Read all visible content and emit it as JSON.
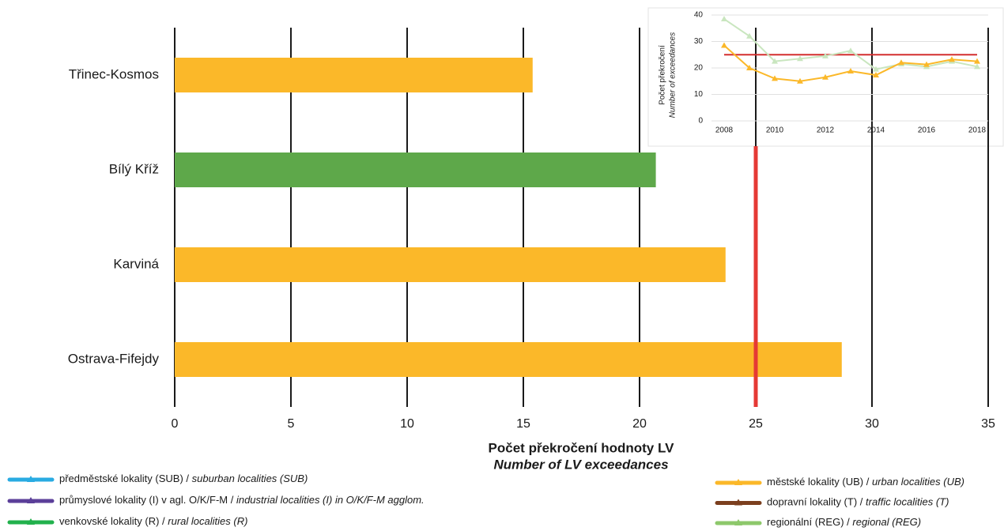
{
  "chart_data": [
    {
      "type": "barh",
      "categories": [
        "Třinec-Kosmos",
        "Bílý Kříž",
        "Karviná",
        "Ostrava-Fifejdy"
      ],
      "values": [
        15.4,
        20.7,
        23.7,
        28.7
      ],
      "colors": [
        "#fbb829",
        "#5ea84a",
        "#fbb829",
        "#fbb829"
      ],
      "xlim": [
        0,
        35
      ],
      "xticks": [
        0,
        5,
        10,
        15,
        20,
        25,
        30,
        35
      ],
      "xlabel": "Počet překročení hodnoty LV",
      "xlabel_en": "Number of LV exceedances",
      "limit": 25,
      "limit_color": "#e53935",
      "grid": true,
      "legend": [
        {
          "name": "předměstské lokality (SUB) /",
          "name_en": "suburban localities (SUB)",
          "color": "#29abe2"
        },
        {
          "name": "průmyslové lokality (I) v agl. O/K/F-M /",
          "name_en": "industrial localities (I) in O/K/F-M agglom.",
          "color": "#5b3f99"
        },
        {
          "name": "venkovské lokality (R) /",
          "name_en": "rural localities (R)",
          "color": "#22b14c"
        },
        {
          "name": "městské lokality (UB) /",
          "name_en": "urban localities (UB)",
          "color": "#fbb829"
        },
        {
          "name": "dopravní lokality (T) /",
          "name_en": "traffic localities (T)",
          "color": "#7b3f1e"
        },
        {
          "name": "regionální (REG) /",
          "name_en": "regional (REG)",
          "color": "#8dc86b"
        }
      ]
    },
    {
      "type": "line",
      "x": [
        2008,
        2009,
        2010,
        2011,
        2012,
        2013,
        2014,
        2015,
        2016,
        2017,
        2018
      ],
      "series": [
        {
          "color": "#c9e6bf",
          "values": [
            38.5,
            32,
            22.5,
            23.5,
            24.5,
            26.5,
            19.5,
            21.5,
            20.5,
            22.5,
            20.5
          ]
        },
        {
          "color": "#fbb829",
          "values": [
            28.5,
            20,
            16,
            15,
            16.5,
            18.8,
            17.3,
            22,
            21.3,
            23.2,
            22.5
          ]
        }
      ],
      "xlim": [
        2008,
        2018
      ],
      "xticks": [
        2008,
        2010,
        2012,
        2014,
        2016,
        2018
      ],
      "ylim": [
        0,
        40
      ],
      "yticks": [
        0,
        10,
        20,
        30,
        40
      ],
      "ylabel": "Počet překročení",
      "ylabel_en": "Number of exceedances",
      "limit": 25,
      "limit_color": "#d32f2f",
      "grid": true
    }
  ]
}
